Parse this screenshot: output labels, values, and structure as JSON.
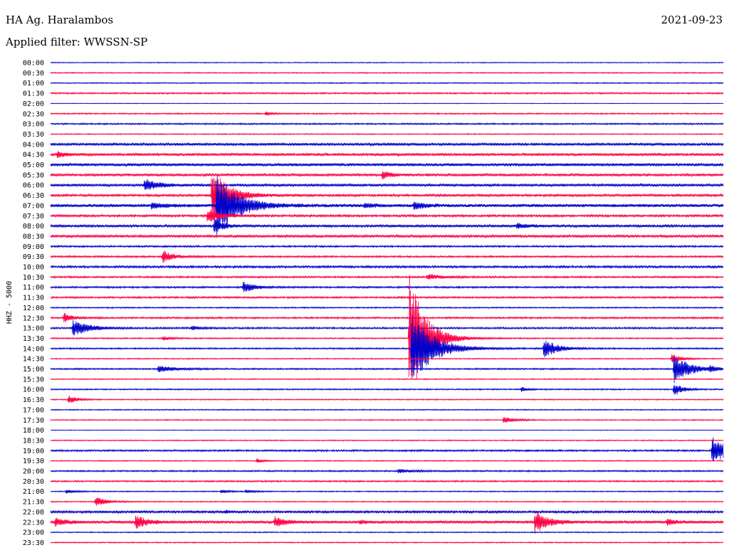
{
  "header": {
    "station": "HA Ag. Haralambos",
    "date": "2021-09-23",
    "filter": "Applied filter: WWSSN-SP"
  },
  "chart_data": {
    "type": "line",
    "title": "HA Ag. Haralambos",
    "ylabel": "HHZ - 5000",
    "xlim": [
      0,
      30
    ],
    "colors": [
      "#0000cc",
      "#ff0044"
    ],
    "rows": [
      "00:00",
      "00:30",
      "01:00",
      "01:30",
      "02:00",
      "02:30",
      "03:00",
      "03:30",
      "04:00",
      "04:30",
      "05:00",
      "05:30",
      "06:00",
      "06:30",
      "07:00",
      "07:30",
      "08:00",
      "08:30",
      "09:00",
      "09:30",
      "10:00",
      "10:30",
      "11:00",
      "11:30",
      "12:00",
      "12:30",
      "13:00",
      "13:30",
      "14:00",
      "14:30",
      "15:00",
      "15:30",
      "16:00",
      "16:30",
      "17:00",
      "17:30",
      "18:00",
      "18:30",
      "19:00",
      "19:30",
      "20:00",
      "20:30",
      "21:00",
      "21:30",
      "22:00",
      "22:30",
      "23:00",
      "23:30"
    ],
    "noise": [
      0.4,
      0.5,
      0.5,
      0.7,
      0.3,
      0.6,
      0.7,
      0.5,
      1.2,
      1.2,
      1.4,
      1.2,
      1.2,
      1.1,
      1.5,
      1.0,
      1.2,
      1.2,
      0.8,
      0.8,
      1.0,
      0.8,
      0.8,
      0.8,
      0.6,
      0.8,
      0.8,
      0.6,
      0.7,
      0.5,
      0.7,
      0.5,
      0.6,
      0.5,
      0.5,
      0.5,
      0.3,
      0.5,
      0.8,
      0.5,
      0.7,
      0.7,
      0.5,
      0.5,
      1.1,
      1.3,
      0.5,
      0.5
    ],
    "events": [
      {
        "row": 5,
        "t": 9.6,
        "amp": 2.5,
        "dur": 0.6
      },
      {
        "row": 9,
        "t": 0.3,
        "amp": 4,
        "dur": 0.8
      },
      {
        "row": 11,
        "t": 14.8,
        "amp": 6,
        "dur": 0.8
      },
      {
        "row": 12,
        "t": 4.2,
        "amp": 9,
        "dur": 1.2
      },
      {
        "row": 13,
        "t": 7.2,
        "amp": 40,
        "dur": 1.5
      },
      {
        "row": 14,
        "t": 7.4,
        "amp": 42,
        "dur": 2.0
      },
      {
        "row": 14,
        "t": 4.5,
        "amp": 4,
        "dur": 1.2
      },
      {
        "row": 14,
        "t": 14.0,
        "amp": 3,
        "dur": 1.0
      },
      {
        "row": 14,
        "t": 16.2,
        "amp": 6,
        "dur": 1.0
      },
      {
        "row": 15,
        "t": 7.0,
        "amp": 10,
        "dur": 1.2
      },
      {
        "row": 16,
        "t": 7.3,
        "amp": 10,
        "dur": 0.8
      },
      {
        "row": 16,
        "t": 20.8,
        "amp": 4,
        "dur": 1.0
      },
      {
        "row": 19,
        "t": 5.0,
        "amp": 9,
        "dur": 1.0
      },
      {
        "row": 21,
        "t": 16.8,
        "amp": 4,
        "dur": 1.5
      },
      {
        "row": 22,
        "t": 8.6,
        "amp": 8,
        "dur": 1.0
      },
      {
        "row": 25,
        "t": 0.6,
        "amp": 7,
        "dur": 0.8
      },
      {
        "row": 26,
        "t": 1.0,
        "amp": 12,
        "dur": 1.5
      },
      {
        "row": 26,
        "t": 6.3,
        "amp": 3,
        "dur": 0.8
      },
      {
        "row": 27,
        "t": 5.0,
        "amp": 3,
        "dur": 0.8
      },
      {
        "row": 27,
        "t": 16.0,
        "amp": 92,
        "dur": 1.5
      },
      {
        "row": 28,
        "t": 16.1,
        "amp": 50,
        "dur": 2.0
      },
      {
        "row": 28,
        "t": 22.0,
        "amp": 14,
        "dur": 1.2
      },
      {
        "row": 29,
        "t": 27.7,
        "amp": 8,
        "dur": 0.8
      },
      {
        "row": 30,
        "t": 4.8,
        "amp": 5,
        "dur": 1.5
      },
      {
        "row": 30,
        "t": 27.8,
        "amp": 20,
        "dur": 1.5
      },
      {
        "row": 30,
        "t": 29.4,
        "amp": 4,
        "dur": 0.6
      },
      {
        "row": 32,
        "t": 27.8,
        "amp": 10,
        "dur": 0.8
      },
      {
        "row": 32,
        "t": 21.0,
        "amp": 3,
        "dur": 0.6
      },
      {
        "row": 33,
        "t": 0.8,
        "amp": 6,
        "dur": 0.8
      },
      {
        "row": 35,
        "t": 20.2,
        "amp": 5,
        "dur": 1.0
      },
      {
        "row": 38,
        "t": 29.5,
        "amp": 20,
        "dur": 1.5
      },
      {
        "row": 39,
        "t": 9.2,
        "amp": 3,
        "dur": 0.6
      },
      {
        "row": 40,
        "t": 15.5,
        "amp": 2.5,
        "dur": 1.5
      },
      {
        "row": 42,
        "t": 0.7,
        "amp": 3,
        "dur": 0.8
      },
      {
        "row": 42,
        "t": 7.6,
        "amp": 2.5,
        "dur": 0.8
      },
      {
        "row": 42,
        "t": 8.7,
        "amp": 2.5,
        "dur": 0.8
      },
      {
        "row": 43,
        "t": 2.0,
        "amp": 7,
        "dur": 1.0
      },
      {
        "row": 44,
        "t": 7.8,
        "amp": 2,
        "dur": 0.5
      },
      {
        "row": 45,
        "t": 0.2,
        "amp": 6,
        "dur": 1.0
      },
      {
        "row": 45,
        "t": 3.8,
        "amp": 10,
        "dur": 1.0
      },
      {
        "row": 45,
        "t": 10.0,
        "amp": 7,
        "dur": 1.0
      },
      {
        "row": 45,
        "t": 21.6,
        "amp": 16,
        "dur": 1.2
      },
      {
        "row": 45,
        "t": 27.5,
        "amp": 4,
        "dur": 0.8
      },
      {
        "row": 45,
        "t": 13.8,
        "amp": 2.5,
        "dur": 0.6
      }
    ]
  }
}
